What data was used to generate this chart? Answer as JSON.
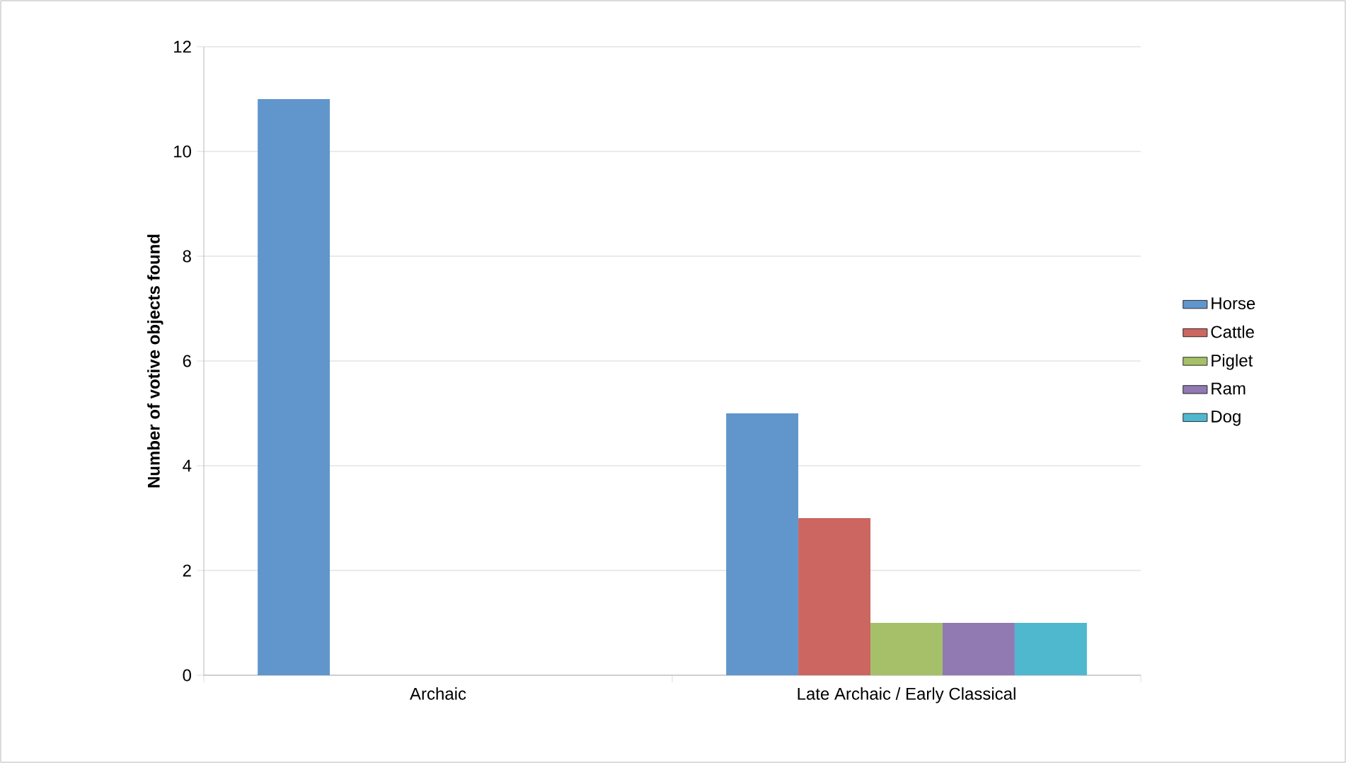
{
  "chart_data": {
    "type": "bar",
    "ylabel": "Number of votive objects found",
    "categories": [
      "Archaic",
      "Late Archaic / Early Classical"
    ],
    "series": [
      {
        "name": "Horse",
        "color": "#6096cc",
        "values": [
          11,
          5
        ]
      },
      {
        "name": "Cattle",
        "color": "#cc6660",
        "values": [
          0,
          3
        ]
      },
      {
        "name": "Piglet",
        "color": "#a6c06a",
        "values": [
          0,
          1
        ]
      },
      {
        "name": "Ram",
        "color": "#9179b2",
        "values": [
          0,
          1
        ]
      },
      {
        "name": "Dog",
        "color": "#4fb8cf",
        "values": [
          0,
          1
        ]
      }
    ],
    "ylim": [
      0,
      12
    ],
    "yticks": [
      0,
      2,
      4,
      6,
      8,
      10,
      12
    ],
    "grid": "y",
    "legend": "right"
  }
}
